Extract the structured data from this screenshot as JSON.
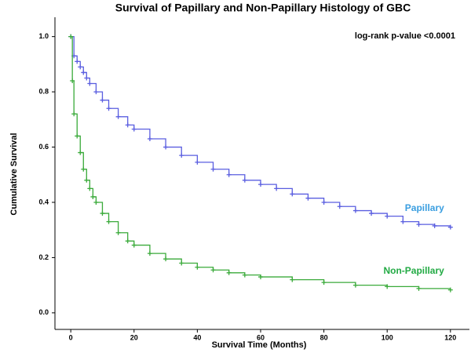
{
  "chart_data": {
    "type": "step",
    "title": "Survival of Papillary and Non-Papillary Histology of GBC",
    "annotation": "log-rank p-value <0.0001",
    "xlabel": "Survival Time (Months)",
    "ylabel": "Cumulative Survival",
    "xlim": [
      -5,
      126
    ],
    "ylim": [
      -0.06,
      1.07
    ],
    "xticks": [
      0,
      20,
      40,
      60,
      80,
      100,
      120
    ],
    "yticks": [
      {
        "value": 0,
        "label": "0.0"
      },
      0.2,
      0.4,
      0.6,
      0.8,
      {
        "value": 1,
        "label": "1.0"
      }
    ],
    "series": [
      {
        "name": "Papillary",
        "color": "#5a5ee0",
        "label_color": "#3a9ee0",
        "x": [
          0,
          1,
          2,
          3,
          4,
          5,
          6,
          8,
          10,
          12,
          15,
          18,
          20,
          25,
          30,
          35,
          40,
          45,
          50,
          55,
          60,
          65,
          70,
          75,
          80,
          85,
          90,
          95,
          100,
          105,
          110,
          115,
          120
        ],
        "values": [
          1.0,
          0.93,
          0.91,
          0.89,
          0.87,
          0.85,
          0.83,
          0.8,
          0.77,
          0.74,
          0.71,
          0.68,
          0.665,
          0.63,
          0.6,
          0.57,
          0.545,
          0.52,
          0.5,
          0.48,
          0.465,
          0.45,
          0.43,
          0.415,
          0.4,
          0.385,
          0.37,
          0.36,
          0.35,
          0.33,
          0.32,
          0.315,
          0.31
        ]
      },
      {
        "name": "Non-Papillary",
        "color": "#3aaa3a",
        "label_color": "#22aa44",
        "x": [
          0,
          0.5,
          1,
          2,
          3,
          4,
          5,
          6,
          7,
          8,
          10,
          12,
          15,
          18,
          20,
          25,
          30,
          35,
          40,
          45,
          50,
          55,
          60,
          70,
          80,
          90,
          100,
          110,
          120
        ],
        "values": [
          1.0,
          0.84,
          0.72,
          0.64,
          0.58,
          0.52,
          0.48,
          0.45,
          0.42,
          0.4,
          0.36,
          0.33,
          0.29,
          0.26,
          0.245,
          0.215,
          0.195,
          0.18,
          0.165,
          0.155,
          0.145,
          0.137,
          0.13,
          0.12,
          0.11,
          0.1,
          0.095,
          0.088,
          0.083
        ]
      }
    ]
  }
}
